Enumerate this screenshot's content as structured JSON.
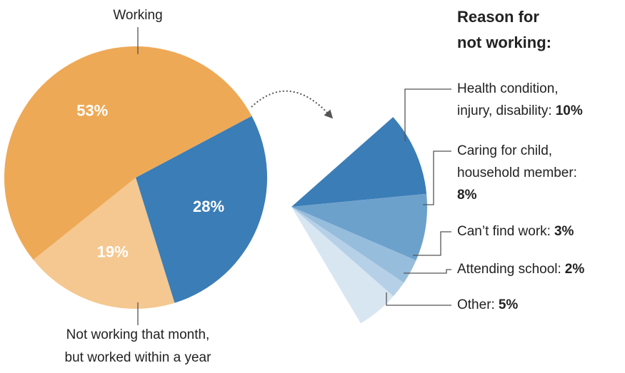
{
  "chart_data": [
    {
      "type": "pie",
      "categories": [
        "Working",
        "Not working that month,\nbut worked within a year",
        null
      ],
      "values": [
        53,
        19,
        28
      ],
      "value_labels": [
        "53%",
        "19%",
        "28%"
      ],
      "colors": [
        "#eea956",
        "#f4c890",
        "#3b7db6"
      ]
    },
    {
      "type": "pie",
      "title": "Reason for\nnot working:",
      "categories": [
        "Health condition,\ninjury, disability:",
        "Caring for child,\nhousehold member:",
        "Can’t find work:",
        "Attending school:",
        "Other:"
      ],
      "values": [
        10,
        8,
        3,
        2,
        5
      ],
      "value_labels": [
        "10%",
        "8%",
        "3%",
        "2%",
        "5%"
      ],
      "colors": [
        "#3b7db6",
        "#6ca1cc",
        "#97bddc",
        "#b5d0e7",
        "#d8e6f2"
      ]
    }
  ]
}
